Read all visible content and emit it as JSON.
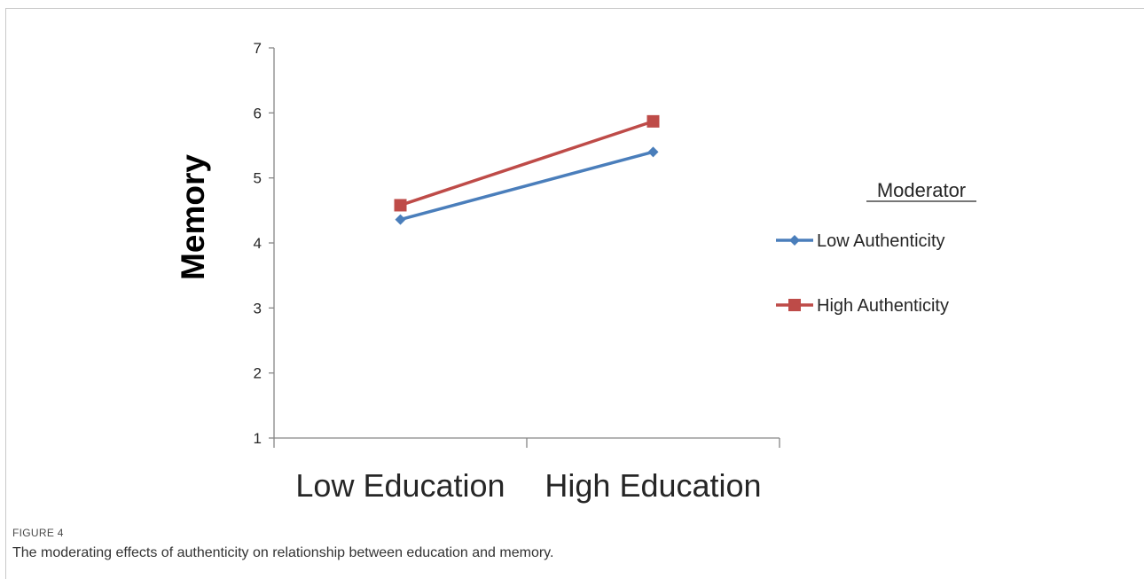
{
  "figure": {
    "label": "FIGURE 4",
    "caption": "The moderating effects of authenticity on relationship between education and memory."
  },
  "chart_data": {
    "type": "line",
    "categories": [
      "Low Education",
      "High Education"
    ],
    "ylabel": "Memory",
    "xlabel": "",
    "ylim": [
      1,
      7
    ],
    "yticks": [
      1,
      2,
      3,
      4,
      5,
      6,
      7
    ],
    "grid": false,
    "legend": {
      "title": "Moderator",
      "placement": "right"
    },
    "series": [
      {
        "name": "Low Authenticity",
        "values": [
          4.36,
          5.4
        ],
        "color": "#4a7ebb",
        "marker": "diamond"
      },
      {
        "name": "High Authenticity",
        "values": [
          4.58,
          5.87
        ],
        "color": "#be4b48",
        "marker": "square"
      }
    ]
  }
}
